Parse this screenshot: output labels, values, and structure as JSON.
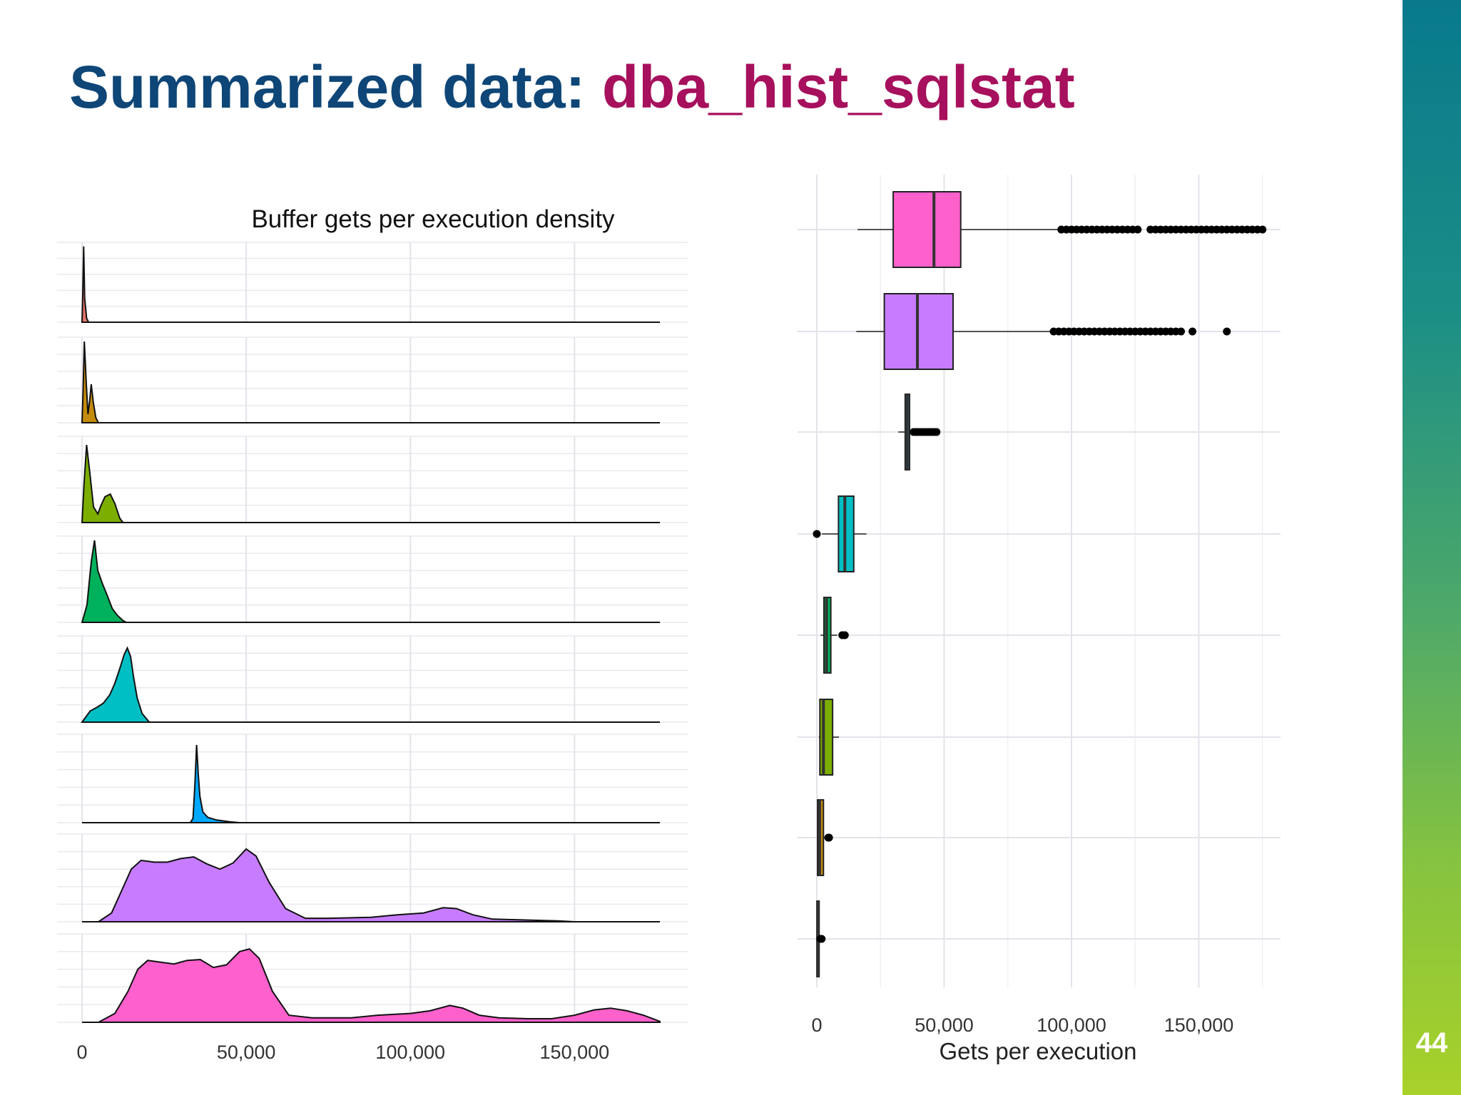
{
  "slide": {
    "title_part1": "Summarized data: ",
    "title_part2": "dba_hist_sqlstat",
    "page_number": "44",
    "title_color_1": "#0e4677",
    "title_color_2": "#a6105c"
  },
  "chart_data": [
    {
      "type": "area",
      "title": "Buffer gets per execution density",
      "xlabel": "",
      "ylabel": "",
      "xlim": [
        0,
        176000
      ],
      "x_ticks": [
        0,
        50000,
        100000,
        150000
      ],
      "x_tick_labels": [
        "0",
        "50,000",
        "100,000",
        "150,000"
      ],
      "grid": true,
      "legend": "none",
      "series": [
        {
          "color": "#e8756d",
          "points": [
            [
              0,
              0
            ],
            [
              200,
              0.3
            ],
            [
              500,
              0.95
            ],
            [
              800,
              0.3
            ],
            [
              1400,
              0.05
            ],
            [
              2000,
              0
            ]
          ]
        },
        {
          "color": "#c58b0c",
          "points": [
            [
              0,
              0
            ],
            [
              300,
              0.35
            ],
            [
              700,
              0.95
            ],
            [
              1300,
              0.45
            ],
            [
              1800,
              0.1
            ],
            [
              2300,
              0.25
            ],
            [
              2800,
              0.45
            ],
            [
              3400,
              0.25
            ],
            [
              4200,
              0.06
            ],
            [
              5000,
              0
            ]
          ]
        },
        {
          "color": "#7cae00",
          "points": [
            [
              0,
              0
            ],
            [
              600,
              0.45
            ],
            [
              1400,
              0.9
            ],
            [
              2300,
              0.6
            ],
            [
              3500,
              0.18
            ],
            [
              4800,
              0.1
            ],
            [
              5800,
              0.2
            ],
            [
              7000,
              0.3
            ],
            [
              8600,
              0.33
            ],
            [
              10000,
              0.22
            ],
            [
              11500,
              0.05
            ],
            [
              12500,
              0
            ]
          ]
        },
        {
          "color": "#00b15c",
          "points": [
            [
              0,
              0
            ],
            [
              1500,
              0.2
            ],
            [
              2800,
              0.7
            ],
            [
              3800,
              0.95
            ],
            [
              4800,
              0.6
            ],
            [
              6200,
              0.45
            ],
            [
              7800,
              0.3
            ],
            [
              9200,
              0.16
            ],
            [
              10800,
              0.08
            ],
            [
              12500,
              0.02
            ],
            [
              13500,
              0
            ]
          ]
        },
        {
          "color": "#00bfc4",
          "points": [
            [
              0,
              0
            ],
            [
              2500,
              0.13
            ],
            [
              4500,
              0.17
            ],
            [
              6500,
              0.22
            ],
            [
              8500,
              0.32
            ],
            [
              10000,
              0.45
            ],
            [
              11500,
              0.62
            ],
            [
              12800,
              0.78
            ],
            [
              13800,
              0.86
            ],
            [
              14800,
              0.76
            ],
            [
              15700,
              0.52
            ],
            [
              16800,
              0.28
            ],
            [
              18300,
              0.1
            ],
            [
              20500,
              0
            ]
          ]
        },
        {
          "color": "#00a9ff",
          "points": [
            [
              33000,
              0
            ],
            [
              33800,
              0.05
            ],
            [
              34400,
              0.45
            ],
            [
              34900,
              0.88
            ],
            [
              35400,
              0.55
            ],
            [
              35900,
              0.3
            ],
            [
              36800,
              0.12
            ],
            [
              38300,
              0.06
            ],
            [
              41000,
              0.03
            ],
            [
              45000,
              0.01
            ],
            [
              48000,
              0
            ]
          ]
        },
        {
          "color": "#c77cff",
          "points": [
            [
              5000,
              0
            ],
            [
              9000,
              0.1
            ],
            [
              12000,
              0.35
            ],
            [
              15000,
              0.6
            ],
            [
              18000,
              0.7
            ],
            [
              22000,
              0.68
            ],
            [
              26000,
              0.68
            ],
            [
              30000,
              0.72
            ],
            [
              34000,
              0.74
            ],
            [
              38000,
              0.66
            ],
            [
              42000,
              0.6
            ],
            [
              46000,
              0.67
            ],
            [
              50000,
              0.83
            ],
            [
              53000,
              0.75
            ],
            [
              57000,
              0.45
            ],
            [
              62000,
              0.15
            ],
            [
              68000,
              0.04
            ],
            [
              75000,
              0.04
            ],
            [
              88000,
              0.05
            ],
            [
              96000,
              0.08
            ],
            [
              104000,
              0.1
            ],
            [
              110000,
              0.16
            ],
            [
              114000,
              0.15
            ],
            [
              119000,
              0.08
            ],
            [
              125000,
              0.03
            ],
            [
              135000,
              0.02
            ],
            [
              145000,
              0.01
            ],
            [
              150000,
              0
            ]
          ]
        },
        {
          "color": "#ff61cc",
          "points": [
            [
              5000,
              0
            ],
            [
              10000,
              0.1
            ],
            [
              14000,
              0.35
            ],
            [
              17000,
              0.6
            ],
            [
              20000,
              0.7
            ],
            [
              24000,
              0.68
            ],
            [
              28000,
              0.66
            ],
            [
              32000,
              0.7
            ],
            [
              36000,
              0.71
            ],
            [
              40000,
              0.62
            ],
            [
              44000,
              0.65
            ],
            [
              48000,
              0.8
            ],
            [
              51000,
              0.83
            ],
            [
              54000,
              0.72
            ],
            [
              58000,
              0.35
            ],
            [
              63000,
              0.08
            ],
            [
              70000,
              0.05
            ],
            [
              82000,
              0.05
            ],
            [
              90000,
              0.08
            ],
            [
              100000,
              0.1
            ],
            [
              106000,
              0.13
            ],
            [
              112000,
              0.19
            ],
            [
              116000,
              0.16
            ],
            [
              121000,
              0.08
            ],
            [
              127000,
              0.05
            ],
            [
              136000,
              0.04
            ],
            [
              143000,
              0.04
            ],
            [
              150000,
              0.08
            ],
            [
              156000,
              0.14
            ],
            [
              161000,
              0.16
            ],
            [
              166000,
              0.13
            ],
            [
              171000,
              0.08
            ],
            [
              176000,
              0.01
            ]
          ]
        }
      ]
    },
    {
      "type": "box",
      "title": "",
      "xlabel": "Gets per execution",
      "ylabel": "",
      "xlim": [
        0,
        182000
      ],
      "x_ticks": [
        0,
        50000,
        100000,
        150000
      ],
      "x_tick_labels": [
        "0",
        "50,000",
        "100,000",
        "150,000"
      ],
      "grid": true,
      "legend": "none",
      "boxes": [
        {
          "color": "#ff61cc",
          "whisker_low": 16000,
          "q1": 30000,
          "median": 46000,
          "q3": 56500,
          "whisker_high": 95000,
          "outliers": [
            96000,
            98000,
            100000,
            102000,
            104000,
            106000,
            108000,
            110000,
            112000,
            114000,
            116000,
            118000,
            120000,
            122000,
            124000,
            126000,
            131000,
            133000,
            135000,
            137000,
            139000,
            141000,
            143000,
            145000,
            147000,
            149000,
            151000,
            153000,
            155000,
            157000,
            159000,
            161000,
            163000,
            165000,
            167000,
            169000,
            171000,
            173000,
            175000
          ]
        },
        {
          "color": "#c77cff",
          "whisker_low": 15500,
          "q1": 26500,
          "median": 39500,
          "q3": 53500,
          "whisker_high": 92000,
          "outliers": [
            93000,
            95000,
            97000,
            99000,
            101000,
            103000,
            105000,
            107000,
            109000,
            111000,
            113000,
            115000,
            117000,
            119000,
            121000,
            123000,
            125000,
            127000,
            129000,
            131000,
            133000,
            135000,
            137000,
            139000,
            141000,
            143000,
            147500,
            161000
          ]
        },
        {
          "color": "#00a9ff",
          "whisker_low": 32000,
          "q1": 34700,
          "median": 35500,
          "q3": 36400,
          "whisker_high": 37500,
          "outliers": [
            38000,
            39000,
            40000,
            41000,
            42000,
            43000,
            44000,
            45000,
            46000,
            47000
          ]
        },
        {
          "color": "#00bfc4",
          "whisker_low": 2000,
          "q1": 8500,
          "median": 11000,
          "q3": 14500,
          "whisker_high": 19500,
          "outliers": [
            0
          ]
        },
        {
          "color": "#00b15c",
          "whisker_low": 1500,
          "q1": 2800,
          "median": 3800,
          "q3": 5500,
          "whisker_high": 8000,
          "outliers": [
            10000,
            11000
          ]
        },
        {
          "color": "#7cae00",
          "whisker_low": 800,
          "q1": 1200,
          "median": 2600,
          "q3": 6200,
          "whisker_high": 8700,
          "outliers": []
        },
        {
          "color": "#c58b0c",
          "whisker_low": 0,
          "q1": 300,
          "median": 1100,
          "q3": 2600,
          "whisker_high": 3000,
          "outliers": [
            4500,
            4800
          ]
        },
        {
          "color": "#e8756d",
          "whisker_low": 0,
          "q1": 50,
          "median": 300,
          "q3": 900,
          "whisker_high": 1000,
          "outliers": [
            1400,
            1900
          ]
        }
      ]
    }
  ]
}
